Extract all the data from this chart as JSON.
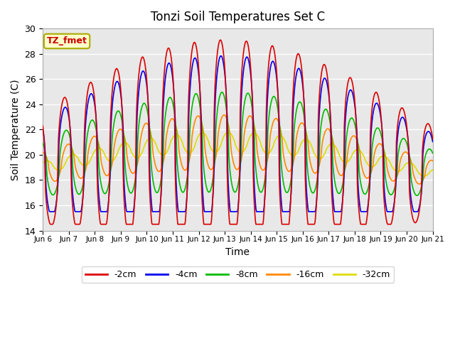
{
  "title": "Tonzi Soil Temperatures Set C",
  "xlabel": "Time",
  "ylabel": "Soil Temperature (C)",
  "ylim": [
    14,
    30
  ],
  "annotation": "TZ_fmet",
  "annotation_color": "#cc0000",
  "annotation_bg": "#ffffcc",
  "series_colors": {
    "-2cm": "#dd0000",
    "-4cm": "#0000ee",
    "-8cm": "#00bb00",
    "-16cm": "#ff8800",
    "-32cm": "#dddd00"
  },
  "series_linewidth": 1.2,
  "grid_color": "#ffffff",
  "bg_color": "#e8e8e8",
  "yticks": [
    14,
    16,
    18,
    20,
    22,
    24,
    26,
    28,
    30
  ],
  "xtick_labels": [
    "Jun 6",
    "Jun 7",
    "Jun 8",
    "Jun 9",
    "Jun 10",
    "Jun 11",
    "Jun 12",
    "Jun 13",
    "Jun 14",
    "Jun 15",
    "Jun 16",
    "Jun 17",
    "Jun 18",
    "Jun 19",
    "Jun 20",
    "Jun 21"
  ]
}
